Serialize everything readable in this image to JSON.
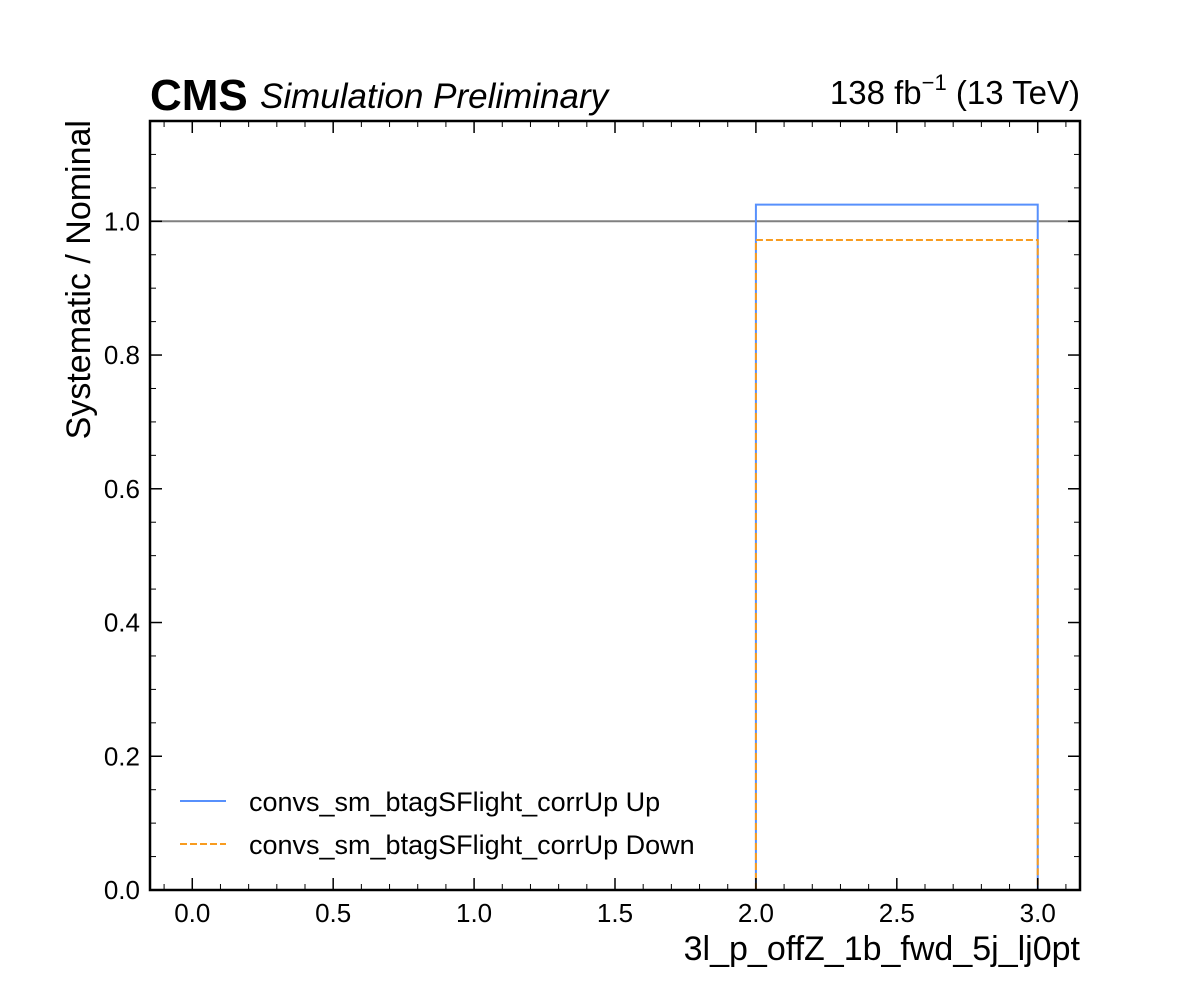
{
  "chart_data": {
    "type": "line",
    "drawstyle": "steps",
    "header": {
      "experiment": "CMS",
      "status": "Simulation Preliminary",
      "lumi_value": "138 fb",
      "lumi_exp": "−1",
      "energy": " (13 TeV)"
    },
    "xlabel": "3l_p_offZ_1b_fwd_5j_lj0pt",
    "ylabel": "Systematic / Nominal",
    "xlim": [
      -0.15,
      3.15
    ],
    "ylim": [
      0.0,
      1.15
    ],
    "x_ticks": [
      "0.0",
      "0.5",
      "1.0",
      "1.5",
      "2.0",
      "2.5",
      "3.0"
    ],
    "y_ticks": [
      "0.0",
      "0.2",
      "0.4",
      "0.6",
      "0.8",
      "1.0"
    ],
    "reference_line": {
      "y": 1.0,
      "color": "#808080"
    },
    "bin_edges": [
      2.0,
      3.0
    ],
    "series": [
      {
        "name": "convs_sm_btagSFlight_corrUp Up",
        "values": [
          1.025
        ],
        "color": "#5790fc",
        "style": "solid"
      },
      {
        "name": "convs_sm_btagSFlight_corrUp Down",
        "values": [
          0.972
        ],
        "color": "#f89c20",
        "style": "dashed"
      }
    ],
    "legend": {
      "placement": "lower-left"
    },
    "grid": false
  }
}
